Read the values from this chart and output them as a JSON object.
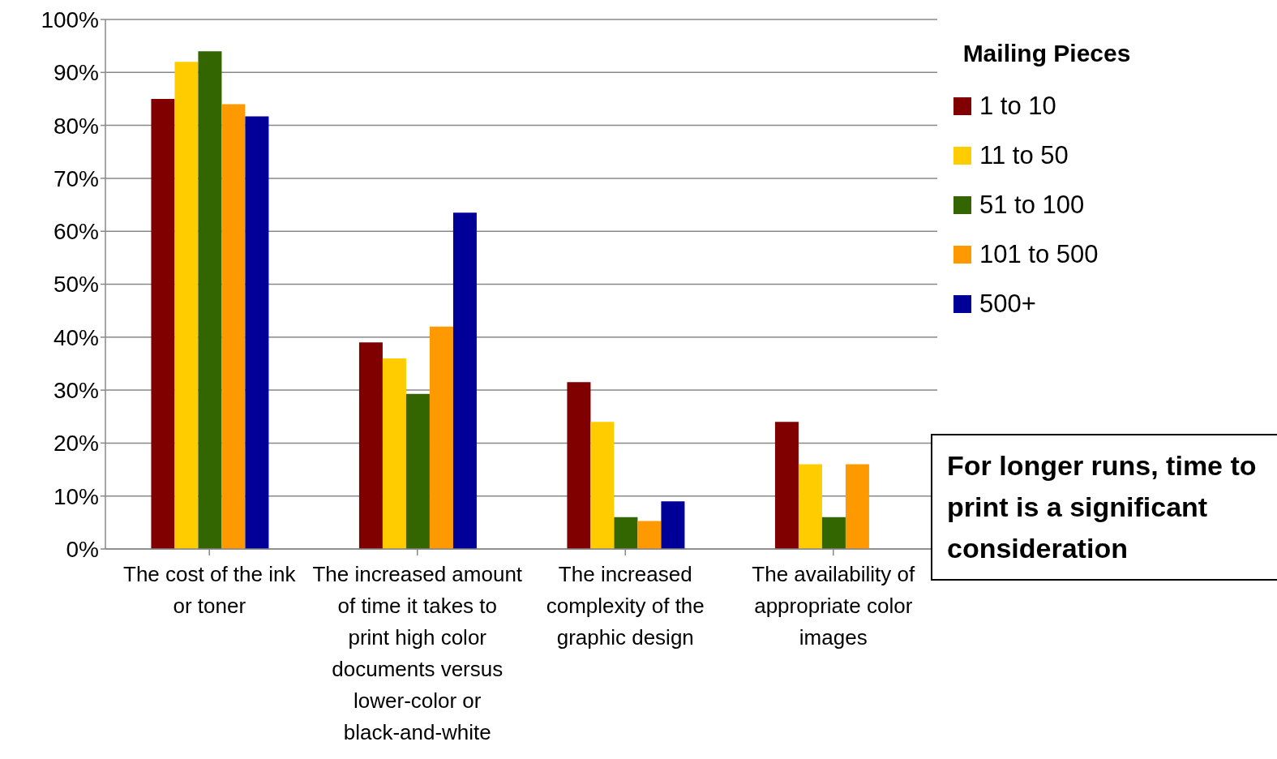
{
  "chart_data": {
    "type": "bar",
    "categories": [
      "The cost of the ink or toner",
      "The increased amount of time it takes to print high color documents versus lower-color or black-and-white",
      "The increased complexity of the graphic design",
      "The availability of appropriate color images"
    ],
    "series": [
      {
        "name": "1 to 10",
        "color": "#800000",
        "values": [
          85,
          39,
          31.5,
          24
        ]
      },
      {
        "name": "11 to 50",
        "color": "#ffcc00",
        "values": [
          92,
          36,
          24,
          16
        ]
      },
      {
        "name": "51 to 100",
        "color": "#336600",
        "values": [
          94,
          29.3,
          6,
          6
        ]
      },
      {
        "name": "101 to 500",
        "color": "#ff9900",
        "values": [
          84,
          42,
          5.3,
          16
        ]
      },
      {
        "name": "500+",
        "color": "#000099",
        "values": [
          81.7,
          63.5,
          9,
          null
        ]
      }
    ],
    "legend_title": "Mailing Pieces",
    "annotations": [
      "For longer runs, time to print is a significant consideration"
    ],
    "ylim": [
      0,
      100
    ],
    "yticks": [
      {
        "value": 0,
        "label": "0%"
      },
      {
        "value": 10,
        "label": "10%"
      },
      {
        "value": 20,
        "label": "20%"
      },
      {
        "value": 30,
        "label": "30%"
      },
      {
        "value": 40,
        "label": "40%"
      },
      {
        "value": 50,
        "label": "50%"
      },
      {
        "value": 60,
        "label": "60%"
      },
      {
        "value": 70,
        "label": "70%"
      },
      {
        "value": 80,
        "label": "80%"
      },
      {
        "value": 90,
        "label": "90%"
      },
      {
        "value": 100,
        "label": "100%"
      }
    ],
    "grid": "y",
    "legend": "right"
  }
}
